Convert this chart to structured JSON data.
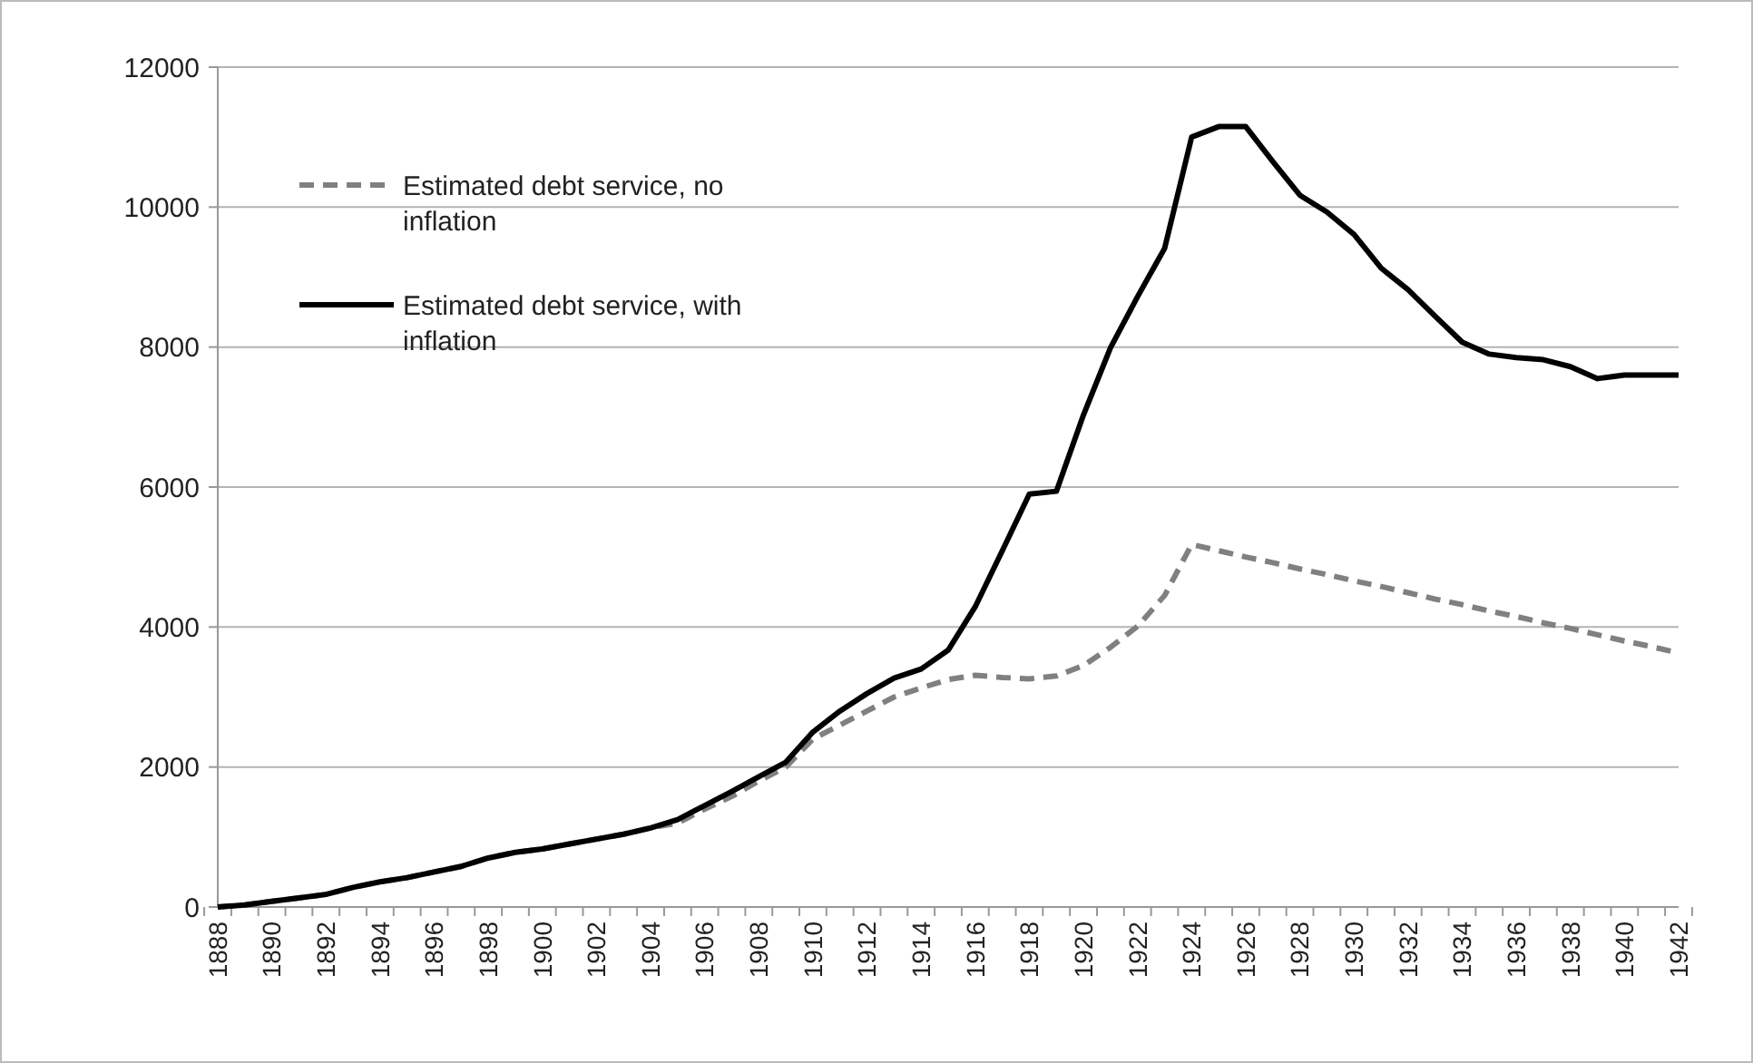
{
  "chart_data": {
    "type": "line",
    "categories": [
      "1888",
      null,
      "1890",
      null,
      "1892",
      null,
      "1894",
      null,
      "1896",
      null,
      "1898",
      null,
      "1900",
      null,
      "1902",
      null,
      "1904",
      null,
      "1906",
      null,
      "1908",
      null,
      "1910",
      null,
      "1912",
      null,
      "1914",
      null,
      "1916",
      null,
      "1918",
      null,
      "1920",
      null,
      "1922",
      null,
      "1924",
      null,
      "1926",
      null,
      "1928",
      null,
      "1930",
      null,
      "1932",
      null,
      "1934",
      null,
      "1936",
      null,
      "1938",
      null,
      "1940",
      null,
      "1942"
    ],
    "series": [
      {
        "name": "Estimated debt service, no inflation",
        "color": "#808080",
        "line_style": "dashed",
        "values": [
          0,
          30,
          80,
          130,
          180,
          280,
          360,
          420,
          500,
          580,
          700,
          780,
          830,
          900,
          970,
          1040,
          1130,
          1200,
          1400,
          1580,
          1800,
          2000,
          2400,
          2600,
          2800,
          3000,
          3130,
          3250,
          3310,
          3280,
          3260,
          3300,
          3450,
          3710,
          4010,
          4450,
          5180,
          5090,
          5000,
          4920,
          4830,
          4750,
          4660,
          4580,
          4490,
          4400,
          4320,
          4230,
          4150,
          4060,
          3980,
          3890,
          3800,
          3720,
          3630
        ]
      },
      {
        "name": "Estimated debt service, with inflation",
        "color": "#000000",
        "line_style": "solid",
        "values": [
          0,
          30,
          80,
          130,
          180,
          280,
          360,
          420,
          500,
          580,
          700,
          780,
          830,
          900,
          970,
          1040,
          1130,
          1250,
          1450,
          1650,
          1860,
          2070,
          2500,
          2800,
          3050,
          3270,
          3400,
          3670,
          4290,
          5090,
          5900,
          5940,
          7030,
          7990,
          8720,
          9410,
          11000,
          11150,
          11150,
          10650,
          10170,
          9930,
          9610,
          9130,
          8820,
          8440,
          8070,
          7900,
          7850,
          7820,
          7720,
          7550,
          7600,
          7600,
          7600
        ]
      }
    ],
    "ylim": [
      0,
      12000
    ],
    "yticks": [
      0,
      2000,
      4000,
      6000,
      8000,
      10000,
      12000
    ],
    "grid": "y",
    "legend": "top left"
  }
}
